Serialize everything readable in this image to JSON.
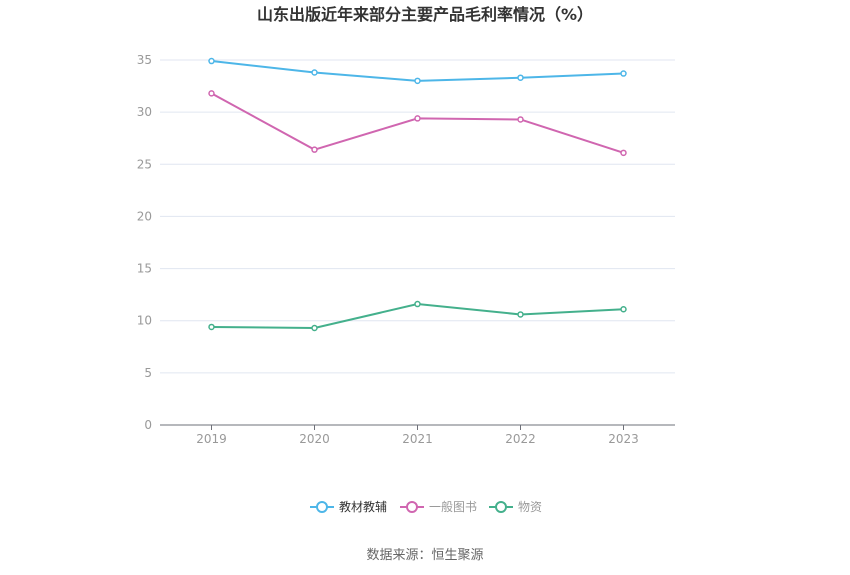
{
  "chart_data": {
    "type": "line",
    "title": "山东出版近年来部分主要产品毛利率情况（%）",
    "categories": [
      "2019",
      "2020",
      "2021",
      "2022",
      "2023"
    ],
    "ylim": [
      0,
      35
    ],
    "yticks": [
      0,
      5,
      10,
      15,
      20,
      25,
      30,
      35
    ],
    "grid": true,
    "legend_position": "bottom",
    "series": [
      {
        "name": "教材教辅",
        "color": "#4db6e8",
        "values": [
          34.9,
          33.8,
          33.0,
          33.3,
          33.7
        ]
      },
      {
        "name": "一般图书",
        "color": "#d066b0",
        "values": [
          31.8,
          26.4,
          29.4,
          29.3,
          26.1
        ]
      },
      {
        "name": "物资",
        "color": "#44b08c",
        "values": [
          9.4,
          9.3,
          11.6,
          10.6,
          11.1
        ]
      }
    ]
  },
  "source_text": "数据来源：恒生聚源"
}
